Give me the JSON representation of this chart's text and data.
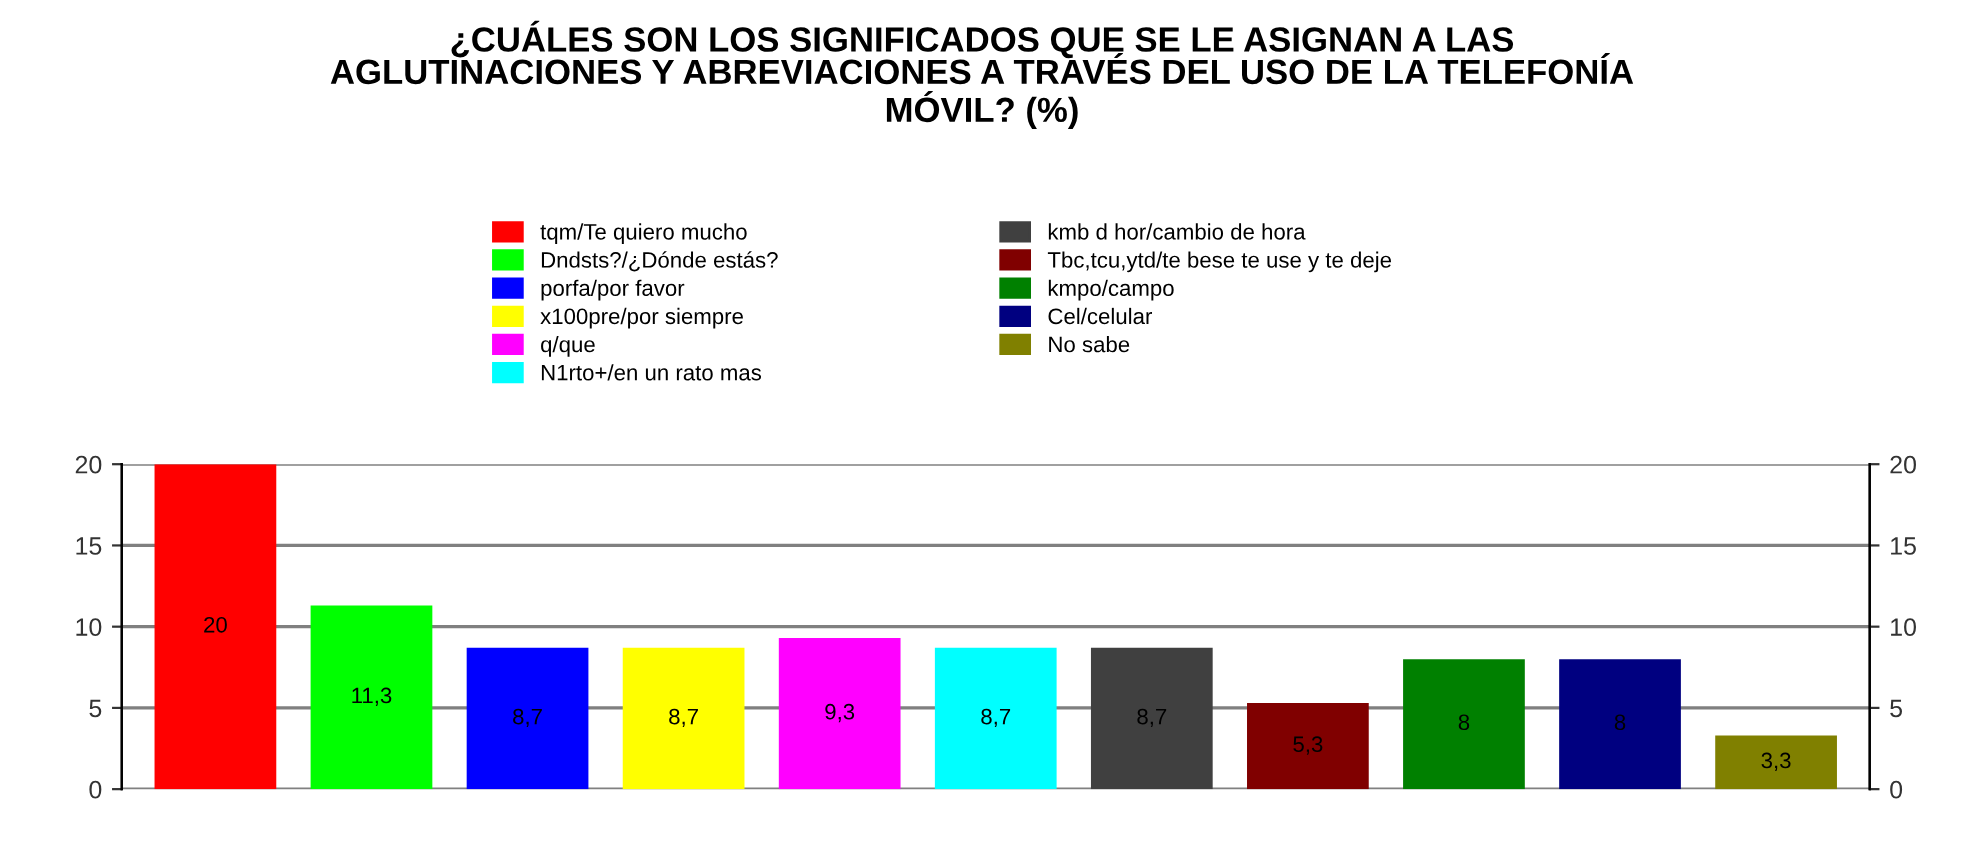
{
  "chart_data": {
    "type": "bar",
    "title": "¿CUÁLES SON LOS SIGNIFICADOS QUE SE LE ASIGNAN A LAS\nAGLUTINACIONES Y ABREVIACIONES A TRAVÉS DEL USO DE LA TELEFONÍA\nMÓVIL? (%)",
    "categories": [
      null,
      null,
      null,
      null,
      null,
      null,
      null,
      null,
      null,
      null,
      null
    ],
    "series": [
      {
        "name": "tqm/Te quiero mucho",
        "color": "#ff0000",
        "values": [
          20,
          null,
          null,
          null,
          null,
          null,
          null,
          null,
          null,
          null,
          null
        ],
        "value_labels": [
          "20",
          null,
          null,
          null,
          null,
          null,
          null,
          null,
          null,
          null,
          null
        ]
      },
      {
        "name": "Dndsts?/¿Dónde estás?",
        "color": "#00ff00",
        "values": [
          null,
          11.3,
          null,
          null,
          null,
          null,
          null,
          null,
          null,
          null,
          null
        ],
        "value_labels": [
          null,
          "11,3",
          null,
          null,
          null,
          null,
          null,
          null,
          null,
          null,
          null
        ]
      },
      {
        "name": "porfa/por favor",
        "color": "#0000ff",
        "values": [
          null,
          null,
          8.7,
          null,
          null,
          null,
          null,
          null,
          null,
          null,
          null
        ],
        "value_labels": [
          null,
          null,
          "8,7",
          null,
          null,
          null,
          null,
          null,
          null,
          null,
          null
        ]
      },
      {
        "name": "x100pre/por siempre",
        "color": "#ffff00",
        "values": [
          null,
          null,
          null,
          8.7,
          null,
          null,
          null,
          null,
          null,
          null,
          null
        ],
        "value_labels": [
          null,
          null,
          null,
          "8,7",
          null,
          null,
          null,
          null,
          null,
          null,
          null
        ]
      },
      {
        "name": "q/que",
        "color": "#ff00ff",
        "values": [
          null,
          null,
          null,
          null,
          9.3,
          null,
          null,
          null,
          null,
          null,
          null
        ],
        "value_labels": [
          null,
          null,
          null,
          null,
          "9,3",
          null,
          null,
          null,
          null,
          null,
          null
        ]
      },
      {
        "name": "N1rto+/en un rato mas",
        "color": "#00ffff",
        "values": [
          null,
          null,
          null,
          null,
          null,
          8.7,
          null,
          null,
          null,
          null,
          null
        ],
        "value_labels": [
          null,
          null,
          null,
          null,
          null,
          "8,7",
          null,
          null,
          null,
          null,
          null
        ]
      },
      {
        "name": "kmb d hor/cambio de hora",
        "color": "#404040",
        "values": [
          null,
          null,
          null,
          null,
          null,
          null,
          8.7,
          null,
          null,
          null,
          null
        ],
        "value_labels": [
          null,
          null,
          null,
          null,
          null,
          null,
          "8,7",
          null,
          null,
          null,
          null
        ]
      },
      {
        "name": "Tbc,tcu,ytd/te bese te use y te deje",
        "color": "#800000",
        "values": [
          null,
          null,
          null,
          null,
          null,
          null,
          null,
          5.3,
          null,
          null,
          null
        ],
        "value_labels": [
          null,
          null,
          null,
          null,
          null,
          null,
          null,
          "5,3",
          null,
          null,
          null
        ]
      },
      {
        "name": "kmpo/campo",
        "color": "#008000",
        "values": [
          null,
          null,
          null,
          null,
          null,
          null,
          null,
          null,
          8,
          null,
          null
        ],
        "value_labels": [
          null,
          null,
          null,
          null,
          null,
          null,
          null,
          null,
          "8",
          null,
          null
        ]
      },
      {
        "name": "Cel/celular",
        "color": "#000080",
        "values": [
          null,
          null,
          null,
          null,
          null,
          null,
          null,
          null,
          null,
          8,
          null
        ],
        "value_labels": [
          null,
          null,
          null,
          null,
          null,
          null,
          null,
          null,
          null,
          "8",
          null
        ]
      },
      {
        "name": "No sabe",
        "color": "#808000",
        "values": [
          null,
          null,
          null,
          null,
          null,
          null,
          null,
          null,
          null,
          null,
          3.3
        ],
        "value_labels": [
          null,
          null,
          null,
          null,
          null,
          null,
          null,
          null,
          null,
          null,
          "3,3"
        ]
      }
    ],
    "ylim": [
      0,
      20
    ],
    "yticks": [
      0,
      5,
      10,
      15,
      20
    ],
    "y2lim": [
      0,
      20
    ],
    "y2ticks": [
      0,
      5,
      10,
      15,
      20
    ],
    "grid": "y",
    "legend": "top"
  }
}
